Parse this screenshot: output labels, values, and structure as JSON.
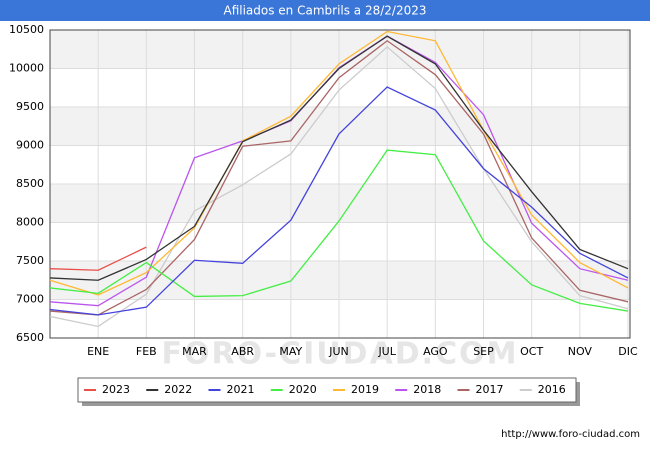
{
  "chart_data": {
    "type": "line",
    "title": "Afiliados en Cambrils a 28/2/2023",
    "categories": [
      null,
      "ENE",
      "FEB",
      "MAR",
      "ABR",
      "MAY",
      "JUN",
      "JUL",
      "AGO",
      "SEP",
      "OCT",
      "NOV",
      "DIC"
    ],
    "series": [
      {
        "name": "2023",
        "color": "#e8504a",
        "values": [
          7400,
          7380,
          7680,
          null,
          null,
          null,
          null,
          null,
          null,
          null,
          null,
          null,
          null
        ]
      },
      {
        "name": "2022",
        "color": "#333333",
        "values": [
          7280,
          7250,
          7520,
          7950,
          9050,
          9330,
          10000,
          10420,
          10060,
          9200,
          8400,
          7650,
          7400
        ]
      },
      {
        "name": "2021",
        "color": "#4444dd",
        "values": [
          6870,
          6800,
          6900,
          7510,
          7470,
          8030,
          9150,
          9760,
          9460,
          8700,
          8200,
          7600,
          7280
        ]
      },
      {
        "name": "2020",
        "color": "#44ee44",
        "values": [
          7150,
          7080,
          7480,
          7040,
          7050,
          7240,
          8020,
          8940,
          8880,
          7760,
          7190,
          6950,
          6850
        ]
      },
      {
        "name": "2019",
        "color": "#ffb833",
        "values": [
          7250,
          7060,
          7350,
          7930,
          9060,
          9380,
          10060,
          10480,
          10360,
          9200,
          8100,
          7480,
          7150
        ]
      },
      {
        "name": "2018",
        "color": "#bb55ee",
        "values": [
          6970,
          6920,
          7290,
          8840,
          9060,
          9320,
          10010,
          10420,
          10080,
          9400,
          7990,
          7400,
          7250
        ]
      },
      {
        "name": "2017",
        "color": "#aa6666",
        "values": [
          6850,
          6800,
          7130,
          7780,
          8990,
          9060,
          9880,
          10360,
          9920,
          9150,
          7800,
          7120,
          6970
        ]
      },
      {
        "name": "2016",
        "color": "#cccccc",
        "values": [
          6780,
          6650,
          7070,
          8150,
          8490,
          8890,
          9720,
          10280,
          9740,
          8700,
          7750,
          7050,
          6880
        ]
      }
    ],
    "ylim": [
      6500,
      10500
    ],
    "yticks": [
      6500,
      7000,
      7500,
      8000,
      8500,
      9000,
      9500,
      10000,
      10500
    ],
    "grid": true,
    "legend": "bottom",
    "watermark": "FORO-CIUDAD.COM",
    "source": "http://www.foro-ciudad.com"
  }
}
